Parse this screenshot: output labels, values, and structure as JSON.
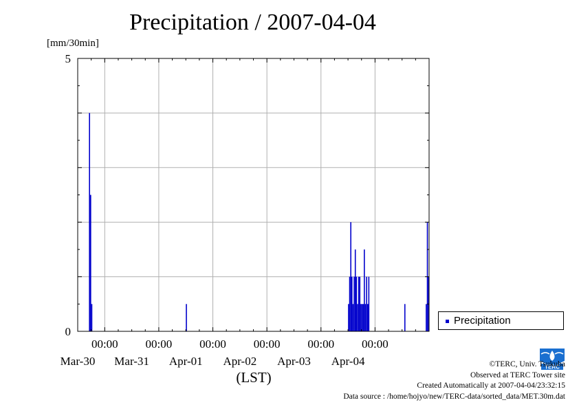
{
  "chart_data": {
    "type": "bar",
    "title": "Precipitation / 2007-04-04",
    "unit_label": "[mm/30min]",
    "xlabel": "(LST)",
    "ylim": [
      0,
      5
    ],
    "y_tick_labels": [
      "0",
      "5"
    ],
    "x_tick_labels": [
      {
        "time": "00:00",
        "date": "Mar-30"
      },
      {
        "time": "00:00",
        "date": "Mar-31"
      },
      {
        "time": "00:00",
        "date": "Apr-01"
      },
      {
        "time": "00:00",
        "date": "Apr-02"
      },
      {
        "time": "00:00",
        "date": "Apr-03"
      },
      {
        "time": "00:00",
        "date": "Apr-04"
      }
    ],
    "x_range": [
      "2007-03-29 12:00",
      "2007-04-05 00:00"
    ],
    "bar_color": "#0000cc",
    "grid": true,
    "legend_position": "right",
    "series": [
      {
        "name": "Precipitation",
        "points": [
          {
            "t": "2007-03-29 17:00",
            "v": 4.0
          },
          {
            "t": "2007-03-29 17:30",
            "v": 2.5
          },
          {
            "t": "2007-03-29 18:00",
            "v": 0.5
          },
          {
            "t": "2007-03-31 12:00",
            "v": 0.5
          },
          {
            "t": "2007-04-03 12:00",
            "v": 0.5
          },
          {
            "t": "2007-04-03 12:30",
            "v": 1.0
          },
          {
            "t": "2007-04-03 13:00",
            "v": 2.0
          },
          {
            "t": "2007-04-03 13:30",
            "v": 1.0
          },
          {
            "t": "2007-04-03 14:00",
            "v": 0.5
          },
          {
            "t": "2007-04-03 14:30",
            "v": 1.0
          },
          {
            "t": "2007-04-03 15:00",
            "v": 1.5
          },
          {
            "t": "2007-04-03 15:30",
            "v": 1.0
          },
          {
            "t": "2007-04-03 16:00",
            "v": 0.5
          },
          {
            "t": "2007-04-03 16:30",
            "v": 1.0
          },
          {
            "t": "2007-04-03 17:00",
            "v": 1.0
          },
          {
            "t": "2007-04-03 17:30",
            "v": 0.5
          },
          {
            "t": "2007-04-03 18:00",
            "v": 0.5
          },
          {
            "t": "2007-04-03 18:30",
            "v": 0.5
          },
          {
            "t": "2007-04-03 19:00",
            "v": 1.5
          },
          {
            "t": "2007-04-03 19:30",
            "v": 0.5
          },
          {
            "t": "2007-04-03 20:00",
            "v": 1.0
          },
          {
            "t": "2007-04-03 20:30",
            "v": 0.5
          },
          {
            "t": "2007-04-03 21:00",
            "v": 1.0
          },
          {
            "t": "2007-04-04 13:00",
            "v": 0.5
          },
          {
            "t": "2007-04-04 22:30",
            "v": 0.5
          },
          {
            "t": "2007-04-04 23:00",
            "v": 2.0
          },
          {
            "t": "2007-04-04 23:30",
            "v": 1.0
          }
        ]
      }
    ]
  },
  "legend": {
    "label": "Precipitation"
  },
  "credits": {
    "copyright": "©TERC, Univ. Tsukuba",
    "site": "Observed at TERC Tower site",
    "created": "Created Automatically at 2007-04-04/23:32:15",
    "source": "Data source : /home/hojyo/new/TERC-data/sorted_data/MET.30m.dat"
  },
  "logo": {
    "text": "TERC",
    "icon": "terc-logo-icon"
  }
}
